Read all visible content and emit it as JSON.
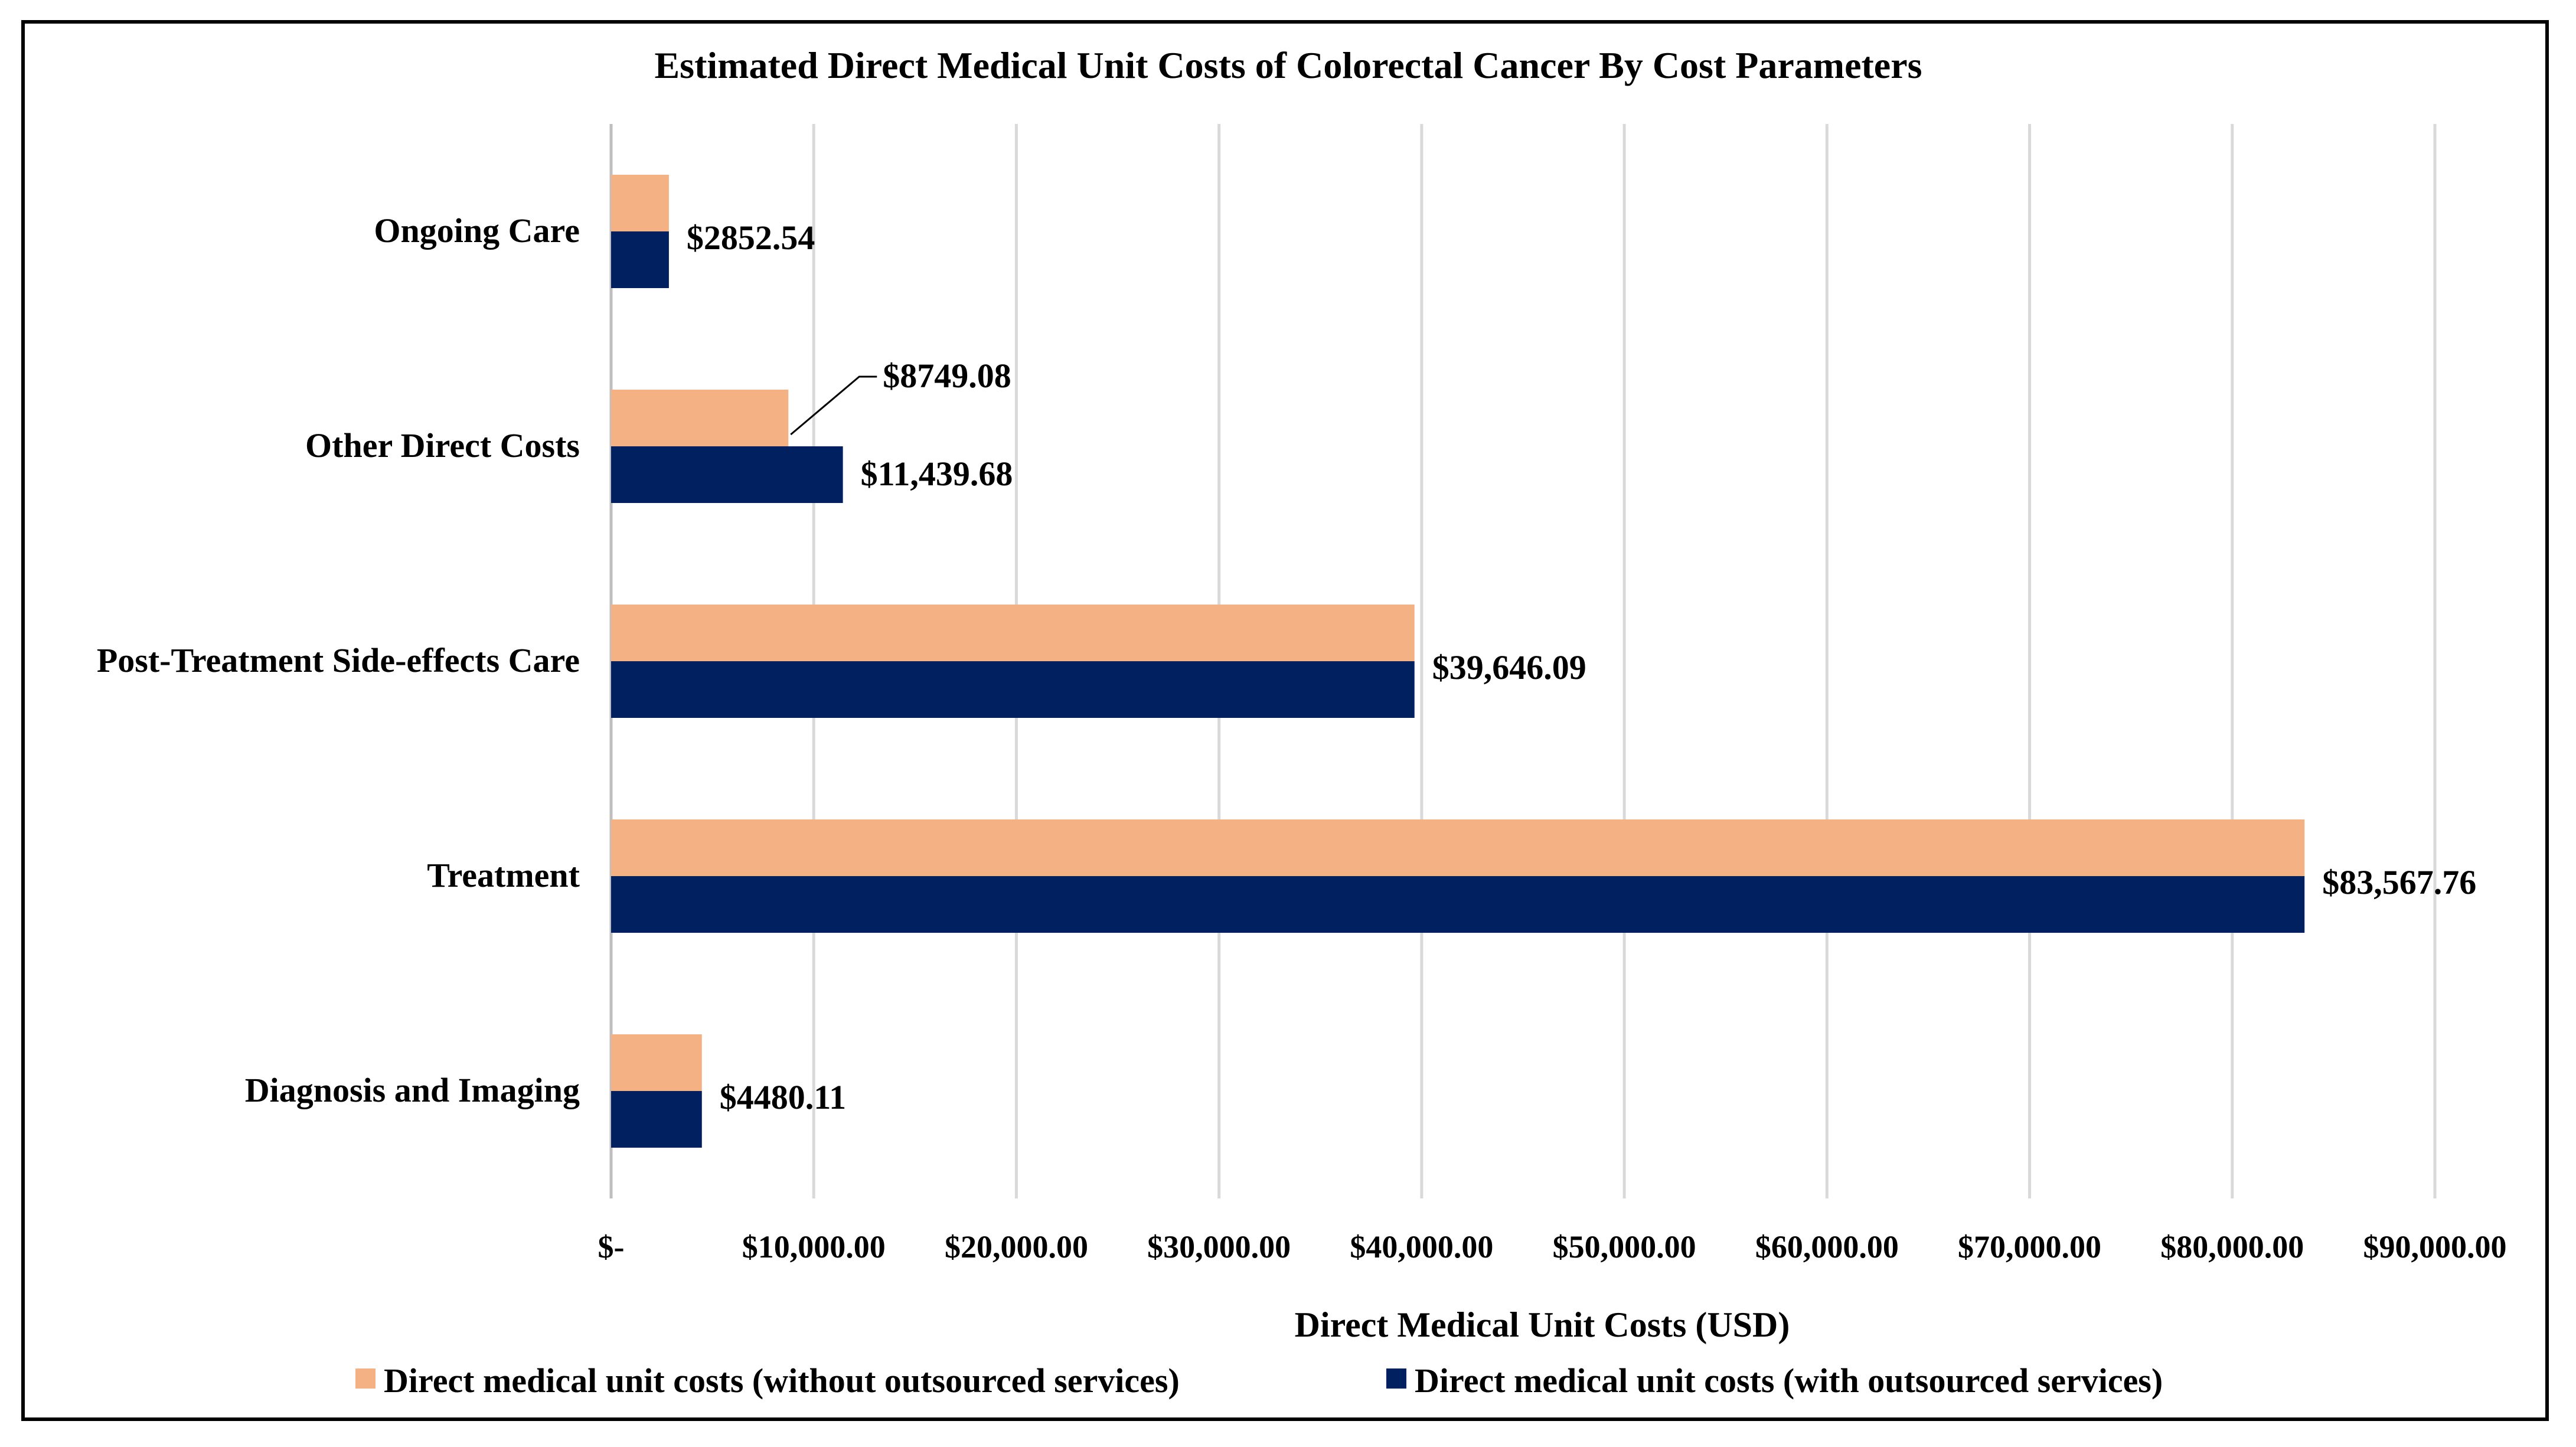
{
  "chart_data": {
    "type": "bar",
    "orientation": "horizontal",
    "title": "Estimated Direct Medical Unit Costs of Colorectal Cancer By Cost Parameters",
    "xlabel": "Direct Medical Unit Costs (USD)",
    "ylabel": "",
    "xlim": [
      0,
      90000
    ],
    "grid": true,
    "legend_position": "bottom",
    "categories": [
      "Ongoing Care",
      "Other Direct Costs",
      "Post-Treatment Side-effects Care",
      "Treatment",
      "Diagnosis and Imaging"
    ],
    "x_ticks": [
      {
        "value": 0,
        "label": "$-"
      },
      {
        "value": 10000,
        "label": "$10,000.00"
      },
      {
        "value": 20000,
        "label": "$20,000.00"
      },
      {
        "value": 30000,
        "label": "$30,000.00"
      },
      {
        "value": 40000,
        "label": "$40,000.00"
      },
      {
        "value": 50000,
        "label": "$50,000.00"
      },
      {
        "value": 60000,
        "label": "$60,000.00"
      },
      {
        "value": 70000,
        "label": "$70,000.00"
      },
      {
        "value": 80000,
        "label": "$80,000.00"
      },
      {
        "value": 90000,
        "label": "$90,000.00"
      }
    ],
    "series": [
      {
        "name": "Direct medical unit costs (without outsourced services)",
        "color": "#F4B183",
        "values": [
          2852.54,
          8749.08,
          39646.09,
          83567.76,
          4480.11
        ]
      },
      {
        "name": "Direct medical unit costs (with outsourced services)",
        "color": "#002060",
        "values": [
          2852.54,
          11439.68,
          39646.09,
          83567.76,
          4480.11
        ]
      }
    ],
    "data_labels": [
      {
        "category": "Ongoing Care",
        "text": "$2852.54"
      },
      {
        "category": "Other Direct Costs",
        "text": "$8749.08",
        "series": 0
      },
      {
        "category": "Other Direct Costs",
        "text": "$11,439.68",
        "series": 1
      },
      {
        "category": "Post-Treatment Side-effects Care",
        "text": "$39,646.09"
      },
      {
        "category": "Treatment",
        "text": "$83,567.76"
      },
      {
        "category": "Diagnosis and Imaging",
        "text": "$4480.11"
      }
    ]
  }
}
